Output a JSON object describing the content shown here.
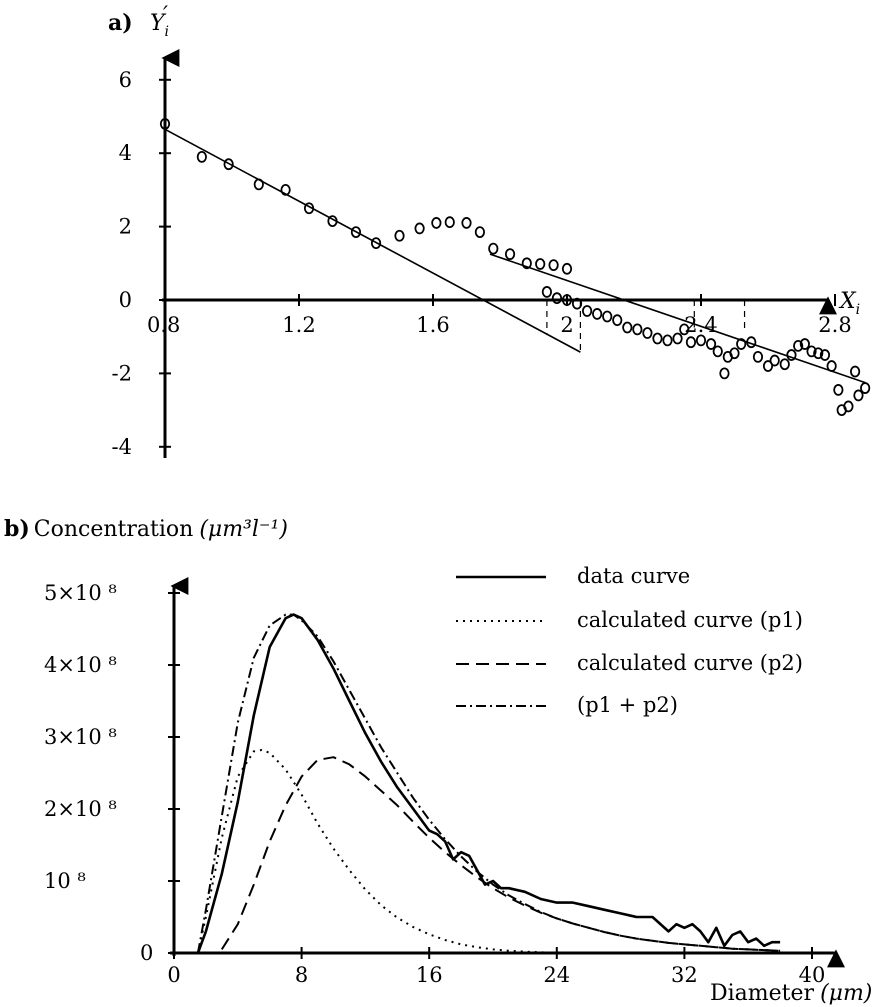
{
  "chart_data": [
    {
      "panel_label": "a)",
      "type": "scatter",
      "ylabel": "Y",
      "ylabel_sub": "i",
      "ylabel_prime": "′",
      "xlabel": "X",
      "xlabel_sub": "i",
      "xlim": [
        0.8,
        2.9
      ],
      "ylim": [
        -4,
        6.6
      ],
      "x_ticks": [
        0.8,
        1.2,
        1.6,
        2,
        2.4,
        2.8
      ],
      "x_tick_labels": [
        "0.8",
        "1.2",
        "1.6",
        "2",
        "2.4",
        "2.8"
      ],
      "y_ticks": [
        6,
        4,
        2,
        0,
        -2,
        -4
      ],
      "y_tick_labels": [
        "6",
        "4",
        "2",
        "0",
        "-2",
        "-4"
      ],
      "points": [
        [
          0.8,
          4.8
        ],
        [
          0.91,
          3.9
        ],
        [
          0.99,
          3.7
        ],
        [
          1.08,
          3.15
        ],
        [
          1.16,
          3.0
        ],
        [
          1.23,
          2.5
        ],
        [
          1.3,
          2.15
        ],
        [
          1.37,
          1.85
        ],
        [
          1.43,
          1.55
        ],
        [
          1.5,
          1.75
        ],
        [
          1.56,
          1.95
        ],
        [
          1.61,
          2.1
        ],
        [
          1.65,
          2.12
        ],
        [
          1.7,
          2.1
        ],
        [
          1.74,
          1.85
        ],
        [
          1.78,
          1.4
        ],
        [
          1.83,
          1.25
        ],
        [
          1.88,
          1.0
        ],
        [
          1.92,
          0.98
        ],
        [
          1.96,
          0.95
        ],
        [
          2.0,
          0.85
        ],
        [
          1.94,
          0.22
        ],
        [
          1.97,
          0.05
        ],
        [
          2.0,
          0.0
        ],
        [
          2.03,
          -0.1
        ],
        [
          2.06,
          -0.3
        ],
        [
          2.09,
          -0.38
        ],
        [
          2.12,
          -0.45
        ],
        [
          2.15,
          -0.55
        ],
        [
          2.18,
          -0.75
        ],
        [
          2.21,
          -0.8
        ],
        [
          2.24,
          -0.9
        ],
        [
          2.27,
          -1.05
        ],
        [
          2.3,
          -1.1
        ],
        [
          2.33,
          -1.05
        ],
        [
          2.35,
          -0.8
        ],
        [
          2.37,
          -1.15
        ],
        [
          2.4,
          -1.1
        ],
        [
          2.43,
          -1.2
        ],
        [
          2.45,
          -1.4
        ],
        [
          2.48,
          -1.55
        ],
        [
          2.47,
          -2.0
        ],
        [
          2.5,
          -1.45
        ],
        [
          2.52,
          -1.2
        ],
        [
          2.55,
          -1.15
        ],
        [
          2.57,
          -1.55
        ],
        [
          2.6,
          -1.8
        ],
        [
          2.62,
          -1.65
        ],
        [
          2.65,
          -1.75
        ],
        [
          2.67,
          -1.5
        ],
        [
          2.69,
          -1.25
        ],
        [
          2.71,
          -1.2
        ],
        [
          2.73,
          -1.4
        ],
        [
          2.75,
          -1.45
        ],
        [
          2.77,
          -1.5
        ],
        [
          2.79,
          -1.8
        ],
        [
          2.81,
          -2.45
        ],
        [
          2.82,
          -3.0
        ],
        [
          2.84,
          -2.9
        ],
        [
          2.86,
          -1.95
        ],
        [
          2.87,
          -2.6
        ],
        [
          2.89,
          -2.4
        ]
      ],
      "fit_lines": [
        {
          "x": [
            0.8,
            2.04
          ],
          "y": [
            4.65,
            -1.42
          ]
        },
        {
          "x": [
            1.77,
            2.89
          ],
          "y": [
            1.25,
            -2.25
          ]
        }
      ],
      "dashed_markers": [
        {
          "x": 1.94,
          "y_from": 0,
          "y_to": -0.95
        },
        {
          "x": 2.04,
          "y_from": 0,
          "y_to": -1.42
        },
        {
          "x": 2.38,
          "y_from": 0,
          "y_to": -0.75
        },
        {
          "x": 2.53,
          "y_from": 0,
          "y_to": -0.85
        }
      ]
    },
    {
      "panel_label": "b)",
      "type": "line",
      "ylabel": "Concentration",
      "ylabel_unit": "(μm³l⁻¹)",
      "xlabel": "Diameter",
      "xlabel_unit": "(μm)",
      "xlim": [
        0,
        41
      ],
      "ylim": [
        0,
        5.15
      ],
      "y_unit_note": "values in units of 10^8",
      "x_ticks": [
        0,
        8,
        16,
        24,
        32,
        40
      ],
      "x_tick_labels": [
        "0",
        "8",
        "16",
        "24",
        "32",
        "40"
      ],
      "y_ticks": [
        5,
        4,
        3,
        2,
        1,
        0
      ],
      "y_tick_labels": [
        "5×10 ⁸",
        "4×10 ⁸",
        "3×10 ⁸",
        "2×10 ⁸",
        "10 ⁸",
        "0"
      ],
      "legend": [
        {
          "label": "data curve",
          "style": "solid"
        },
        {
          "label": "calculated curve (p1)",
          "style": "dotted"
        },
        {
          "label": "calculated curve (p2)",
          "style": "dashed"
        },
        {
          "label": "(p1 + p2)",
          "style": "dashdot"
        }
      ],
      "series": [
        {
          "name": "data curve",
          "style": "solid",
          "x": [
            1.5,
            2,
            3,
            4,
            5,
            6,
            7,
            7.5,
            8,
            9,
            10,
            11,
            12,
            13,
            14,
            15,
            16,
            16.5,
            17,
            17.5,
            18,
            18.5,
            19,
            19.5,
            20,
            20.5,
            21,
            22,
            23,
            24,
            25,
            26,
            27,
            28,
            29,
            30,
            31,
            31.5,
            32,
            32.5,
            33,
            33.5,
            34,
            34.5,
            35,
            35.5,
            36,
            36.5,
            37,
            37.5,
            38
          ],
          "y": [
            0,
            0.3,
            1.1,
            2.1,
            3.3,
            4.25,
            4.65,
            4.7,
            4.65,
            4.35,
            3.95,
            3.5,
            3.05,
            2.65,
            2.3,
            2.0,
            1.7,
            1.65,
            1.55,
            1.3,
            1.4,
            1.35,
            1.15,
            0.95,
            1.0,
            0.9,
            0.9,
            0.85,
            0.75,
            0.7,
            0.7,
            0.65,
            0.6,
            0.55,
            0.5,
            0.5,
            0.3,
            0.4,
            0.35,
            0.4,
            0.3,
            0.15,
            0.35,
            0.1,
            0.25,
            0.3,
            0.15,
            0.2,
            0.1,
            0.15,
            0.15
          ]
        },
        {
          "name": "calculated curve (p1)",
          "style": "dotted",
          "x": [
            1.5,
            2,
            3,
            4,
            5,
            5.5,
            6,
            7,
            8,
            9,
            10,
            11,
            12,
            13,
            14,
            15,
            16,
            17,
            18,
            19,
            20,
            21,
            22,
            23,
            24,
            25,
            26,
            27,
            28
          ],
          "y": [
            0,
            0.5,
            1.6,
            2.45,
            2.8,
            2.82,
            2.78,
            2.55,
            2.2,
            1.8,
            1.45,
            1.15,
            0.88,
            0.66,
            0.49,
            0.36,
            0.26,
            0.18,
            0.12,
            0.08,
            0.05,
            0.03,
            0.02,
            0.01,
            0.005,
            0,
            0,
            0,
            0
          ]
        },
        {
          "name": "calculated curve (p2)",
          "style": "dashed",
          "x": [
            3,
            4,
            5,
            6,
            7,
            8,
            9,
            10,
            11,
            12,
            13,
            14,
            15,
            16,
            17,
            18,
            19,
            20,
            21,
            22,
            23,
            24,
            25,
            26,
            27,
            28,
            29,
            30,
            31,
            32,
            33,
            34,
            35,
            36,
            37,
            38
          ],
          "y": [
            0.05,
            0.4,
            0.95,
            1.55,
            2.05,
            2.45,
            2.68,
            2.72,
            2.62,
            2.45,
            2.25,
            2.05,
            1.82,
            1.6,
            1.4,
            1.22,
            1.05,
            0.9,
            0.77,
            0.66,
            0.56,
            0.48,
            0.41,
            0.35,
            0.29,
            0.24,
            0.2,
            0.17,
            0.14,
            0.12,
            0.1,
            0.08,
            0.06,
            0.05,
            0.04,
            0.03
          ]
        },
        {
          "name": "(p1 + p2)",
          "style": "dashdot",
          "x": [
            1.5,
            2,
            3,
            4,
            5,
            6,
            7,
            7.5,
            8,
            9,
            10,
            11,
            12,
            13,
            14,
            15,
            16,
            17,
            18,
            19,
            20,
            21,
            22,
            23,
            24,
            25,
            26,
            27,
            28,
            29,
            30,
            31,
            32,
            33,
            34,
            35,
            36,
            37,
            38
          ],
          "y": [
            0,
            0.6,
            1.9,
            3.2,
            4.1,
            4.55,
            4.7,
            4.7,
            4.62,
            4.4,
            4.05,
            3.65,
            3.25,
            2.85,
            2.5,
            2.15,
            1.85,
            1.58,
            1.34,
            1.13,
            0.95,
            0.8,
            0.68,
            0.57,
            0.48,
            0.41,
            0.35,
            0.29,
            0.24,
            0.2,
            0.17,
            0.14,
            0.12,
            0.1,
            0.08,
            0.06,
            0.05,
            0.04,
            0.03
          ]
        }
      ]
    }
  ]
}
